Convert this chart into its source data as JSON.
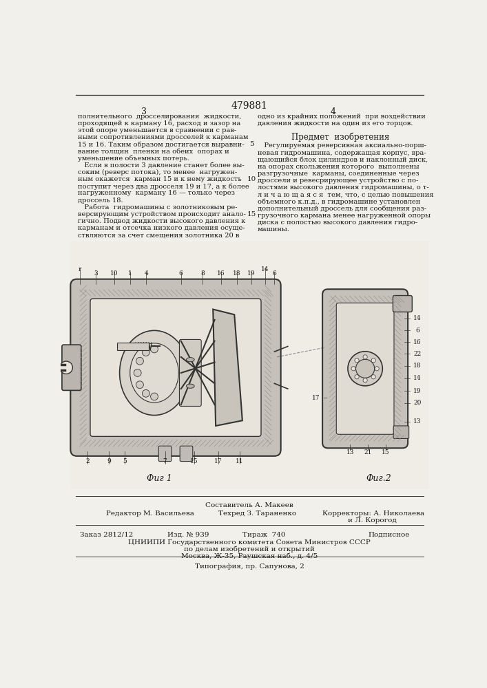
{
  "patent_number": "479881",
  "page_left": "3",
  "page_right": "4",
  "bg_color": "#f2f0eb",
  "text_color": "#1a1a1a",
  "col1_lines": [
    "полнительного  дросселирования  жидкости,",
    "проходящей к карману 16, расход и зазор на",
    "этой опоре уменьшается в сравнении с рав-",
    "ными сопротивлениями дросселей к карманам",
    "15 и 16. Таким образом достигается выравни-",
    "вание толщин  пленки на обеих  опорах и",
    "уменьшение объемных потерь.",
    "   Если в полости 3 давление станет более вы-",
    "соким (реверс потока), то менее  нагружен-",
    "ным окажется  карман 15 и к нему жидкость",
    "поступит через два дросселя 19 и 17, а к более",
    "нагруженному  карману 16 — только через",
    "дроссель 18.",
    "   Работа  гидромашины с золотниковым ре-",
    "версирующим устройством происходит анало-",
    "гично. Подвод жидкости высокого давления к",
    "карманам и отсечка низкого давления осуще-",
    "ствляются за счет смещения золотника 20 в"
  ],
  "col2_pre": [
    "одно из крайних положений  при воздействии",
    "давления жидкости на один из его торцов."
  ],
  "subject_title": "Предмет  изобретения",
  "col2_subject": [
    "   Регулируемая реверсивная аксиально-порш-",
    "невая гидромашина, содержащая корпус, вра-",
    "щающийся блок цилиндров и наклонный диск,",
    "на опорах скольжения которого  выполнены",
    "разгрузочные  карманы, соединенные через",
    "дроссели и ревесрирующее устройство с по-",
    "лостями высокого давления гидромашины, о т-",
    "л и ч а ю щ а я с я  тем, что, с целью повышения",
    "объемного к.п.д., в гидромашине установлен",
    "дополнительный дроссель для сообщения раз-",
    "грузочного кармана менее нагруженной опоры",
    "диска с полостью высокого давления гидро-",
    "машины."
  ],
  "fig1_label": "Фиг 1",
  "fig2_label": "Фиг.2",
  "editor_label": "Редактор",
  "editor_name": "М. Васильева",
  "composer_label": "Составитель",
  "composer_name": "А. Макеев",
  "correctors_label": "Корректоры:",
  "corrector1": "А. Николаева",
  "corrector2": "и Л. Корогод",
  "techred_label": "Техред",
  "techred_name": "З. Тараненко",
  "order": "Заказ 2812/12",
  "izd": "Изд. № 939",
  "tirazh": "Тираж  740",
  "podpisnoe": "Подписное",
  "org1": "ЦНИИПИ Государственного комитета Совета Министров СССР",
  "org2": "по делам изобретений и открытий",
  "addr": "Москва, Ж-35, Раушская наб., д. 4/5",
  "print_line": "Типография, пр. Сапунова, 2",
  "drawing_bg": "#e8e5df",
  "hatch_color": "#888880",
  "line_color": "#333330"
}
